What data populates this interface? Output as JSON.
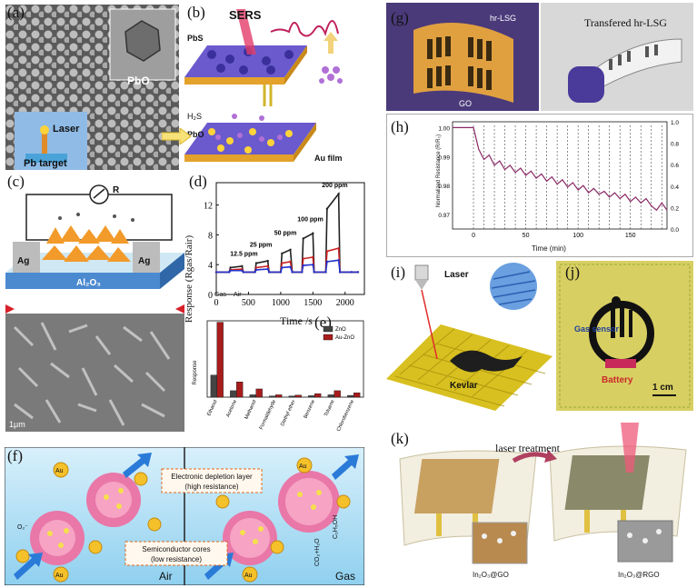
{
  "labels": {
    "a": "(a)",
    "b": "(b)",
    "c": "(c)",
    "d": "(d)",
    "e": "(e)",
    "f": "(f)",
    "g": "(g)",
    "h": "(h)",
    "i": "(i)",
    "j": "(j)",
    "k": "(k)"
  },
  "panel_a": {
    "pbo": "PbO",
    "laser": "Laser",
    "target": "Pb target"
  },
  "panel_b": {
    "sers": "SERS",
    "pbs": "PbS",
    "h2s": "H₂S",
    "pbo": "PbO",
    "au_film": "Au film"
  },
  "panel_c": {
    "r": "R",
    "ag_left": "Ag",
    "ag_right": "Ag",
    "substrate": "Al₂O₃",
    "scale": "1μm"
  },
  "panel_d": {
    "annotations": [
      "12.5 ppm",
      "25 ppm",
      "50 ppm",
      "100 ppm",
      "200 ppm"
    ],
    "gas": "Gas",
    "air": "Air"
  },
  "panel_f": {
    "depletion": "Electronic depletion layer",
    "depletion2": "(high resistance)",
    "cores": "Semiconductor cores",
    "cores2": "(low resistance)",
    "au": "Au",
    "air": "Air",
    "gas": "Gas",
    "o2": "O₂⁻",
    "ethanol": "C₂H₅OH",
    "products": "CO₂+H₂O"
  },
  "panel_g": {
    "hr": "hr-LSG",
    "go": "GO",
    "transferred": "Transfered hr-LSG"
  },
  "panel_i": {
    "laser": "Laser",
    "kevlar": "Kevlar"
  },
  "panel_j": {
    "gas_sensor": "Gas\nsensor",
    "battery": "Battery",
    "scale": "1 cm"
  },
  "panel_k": {
    "treatment": "laser treatment",
    "left": "In₂O₃@GO",
    "right": "In₂O₃@RGO"
  },
  "chart_data": [
    {
      "id": "d",
      "type": "line",
      "xlabel": "Time /s",
      "ylabel": "Response (Rgas/Rair)",
      "xlim": [
        0,
        2300
      ],
      "ylim": [
        0,
        15
      ],
      "xticks": [
        0,
        500,
        1000,
        1500,
        2000
      ],
      "yticks": [
        0,
        4,
        8,
        12
      ],
      "series": [
        {
          "color": "#222222",
          "x": [
            0,
            200,
            220,
            400,
            420,
            600,
            620,
            800,
            820,
            1000,
            1020,
            1150,
            1180,
            1330,
            1350,
            1500,
            1520,
            1700,
            1720,
            1900,
            1920,
            2100,
            2200
          ],
          "y": [
            3,
            3,
            3.6,
            3.8,
            3,
            3,
            4.2,
            4.5,
            3,
            3,
            5.5,
            6,
            3,
            3,
            7.5,
            8.2,
            3,
            3,
            11.5,
            13.5,
            3,
            3,
            3
          ]
        },
        {
          "color": "#cc2222",
          "x": [
            0,
            200,
            220,
            400,
            420,
            600,
            620,
            800,
            820,
            1000,
            1020,
            1150,
            1180,
            1330,
            1350,
            1500,
            1520,
            1700,
            1720,
            1900,
            1920,
            2100,
            2200
          ],
          "y": [
            3,
            3,
            3.3,
            3.4,
            3,
            3,
            3.6,
            3.8,
            3,
            3,
            4.2,
            4.4,
            3,
            3,
            4.8,
            5,
            3,
            3,
            5.8,
            6.2,
            3,
            3,
            3
          ]
        },
        {
          "color": "#2233cc",
          "x": [
            0,
            200,
            220,
            400,
            420,
            600,
            620,
            800,
            820,
            1000,
            1020,
            1150,
            1180,
            1330,
            1350,
            1500,
            1520,
            1700,
            1720,
            1900,
            1920,
            2100,
            2200
          ],
          "y": [
            3,
            3,
            3.2,
            3.2,
            3,
            3,
            3.3,
            3.4,
            3,
            3,
            3.6,
            3.7,
            3,
            3,
            3.9,
            4,
            3,
            3,
            4.4,
            4.6,
            3,
            3,
            3
          ]
        }
      ]
    },
    {
      "id": "e",
      "type": "bar",
      "ylabel": "Response",
      "categories": [
        "Ethanol",
        "Acetone",
        "Methanol",
        "Formaldehyde",
        "Diethyl ether",
        "Benzene",
        "Toluene",
        "Chlorobenzene"
      ],
      "ylim": [
        0,
        260
      ],
      "series": [
        {
          "name": "ZnO",
          "color": "#444444",
          "values": [
            75,
            22,
            8,
            4,
            4,
            5,
            8,
            6
          ]
        },
        {
          "name": "Au-ZnO",
          "color": "#a81c1c",
          "values": [
            255,
            52,
            28,
            8,
            7,
            12,
            22,
            15
          ]
        }
      ]
    },
    {
      "id": "h",
      "type": "line",
      "xlabel": "Time (min)",
      "ylabel": "Normalized Resistance (R/R₀)",
      "xlim": [
        -20,
        185
      ],
      "ylim": [
        0.965,
        1.002
      ],
      "xticks": [
        0,
        50,
        100,
        150
      ],
      "yticks": [
        0.97,
        0.98,
        0.99,
        1.0
      ],
      "y2ticks": [
        0,
        0.2,
        0.4,
        0.6,
        0.8,
        1.0
      ],
      "series": [
        {
          "color": "#8a2a66",
          "x": [
            -20,
            0,
            5,
            10,
            15,
            20,
            25,
            30,
            35,
            40,
            45,
            50,
            55,
            60,
            65,
            70,
            75,
            80,
            85,
            90,
            95,
            100,
            105,
            110,
            115,
            120,
            125,
            130,
            135,
            140,
            145,
            150,
            155,
            160,
            165,
            170,
            175,
            180,
            185
          ],
          "y": [
            1.0,
            1.0,
            0.9925,
            0.989,
            0.9905,
            0.987,
            0.9885,
            0.9855,
            0.987,
            0.9845,
            0.986,
            0.9835,
            0.985,
            0.9825,
            0.984,
            0.9815,
            0.983,
            0.9805,
            0.982,
            0.9795,
            0.981,
            0.9785,
            0.98,
            0.9775,
            0.979,
            0.977,
            0.978,
            0.976,
            0.9775,
            0.9755,
            0.977,
            0.9745,
            0.976,
            0.974,
            0.9755,
            0.973,
            0.9715,
            0.974,
            0.9715
          ]
        }
      ]
    }
  ]
}
